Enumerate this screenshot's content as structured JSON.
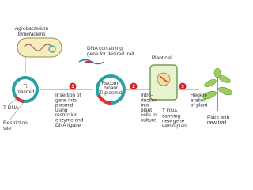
{
  "labels": {
    "agrobacterium": [
      "Agrobacterium",
      "tumefaciens"
    ],
    "ti_plasmid": [
      "Ti",
      "plasmid"
    ],
    "t_dna": "T DNA",
    "restriction_site": [
      "Restriction",
      "site"
    ],
    "dna_gene": [
      "DNA containing",
      "gene for desired trait"
    ],
    "recombinant": [
      "Recom-",
      "binant",
      "Ti plasmid"
    ],
    "plant_cell": "Plant cell",
    "step1": [
      "Insertion of",
      "gene into",
      "plasmid",
      "using",
      "restriction",
      "enzyme and",
      "DNA ligase"
    ],
    "step2": [
      "Intro-",
      "duction",
      "into",
      "plant",
      "cells in",
      "culture"
    ],
    "step3": [
      "Regen-",
      "eration",
      "of plant"
    ],
    "t_dna_new": [
      "T DNA",
      "carrying",
      "new gene",
      "within plant"
    ],
    "plant_new": [
      "Plant with",
      "new trait"
    ]
  },
  "steps": [
    "1",
    "2",
    "3"
  ]
}
